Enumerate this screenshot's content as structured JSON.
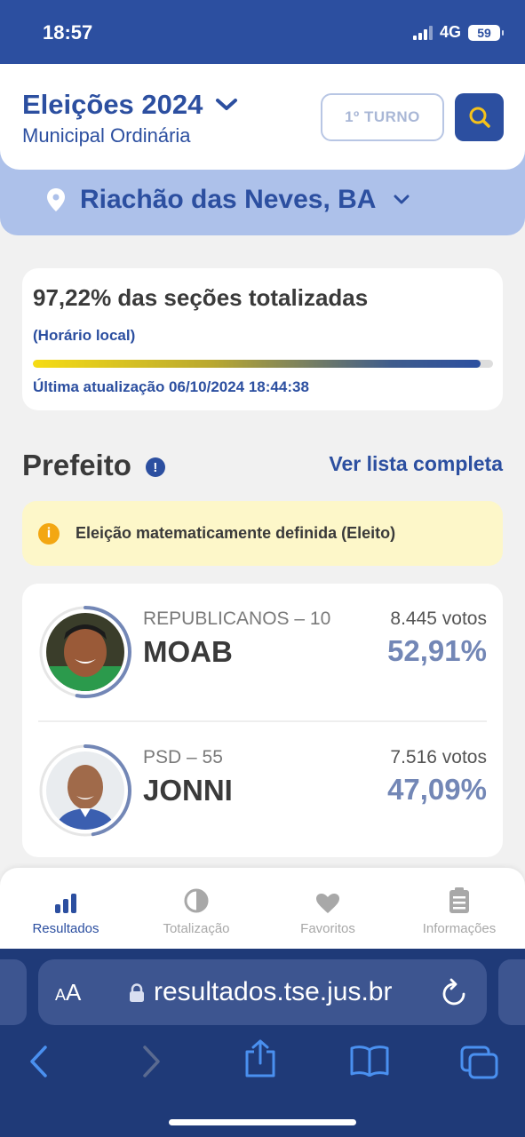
{
  "status_bar": {
    "time": "18:57",
    "network": "4G",
    "battery": "59"
  },
  "header": {
    "title": "Eleições 2024",
    "subtitle": "Municipal Ordinária",
    "turno_label": "1º TURNO",
    "location": "Riachão das Neves, BA"
  },
  "progress": {
    "title": "97,22% das seções totalizadas",
    "local_time_label": "(Horário local)",
    "fraction": 0.9722,
    "last_update": "Última atualização 06/10/2024 18:44:38"
  },
  "section": {
    "title": "Prefeito",
    "info_mark": "!",
    "see_all": "Ver lista completa",
    "alert_text": "Eleição matematicamente definida (Eleito)",
    "alert_mark": "i"
  },
  "candidates": [
    {
      "party": "REPUBLICANOS – 10",
      "name": "MOAB",
      "votes": "8.445 votos",
      "percent": "52,91%",
      "share": 0.5291
    },
    {
      "party": "PSD – 55",
      "name": "JONNI",
      "votes": "7.516 votos",
      "percent": "47,09%",
      "share": 0.4709
    }
  ],
  "bottom_nav": {
    "items": [
      {
        "label": "Resultados",
        "icon": "bar-chart-icon",
        "active": true
      },
      {
        "label": "Totalização",
        "icon": "pie-chart-icon",
        "active": false
      },
      {
        "label": "Favoritos",
        "icon": "heart-icon",
        "active": false
      },
      {
        "label": "Informações",
        "icon": "clipboard-icon",
        "active": false
      }
    ]
  },
  "browser": {
    "text_size_label_small": "A",
    "text_size_label_large": "A",
    "url": "resultados.tse.jus.br"
  },
  "colors": {
    "brand_blue": "#2c4fa0",
    "percent_blue": "#7387b6",
    "alert_bg": "#fdf7c9",
    "alert_icon": "#f3a712"
  }
}
